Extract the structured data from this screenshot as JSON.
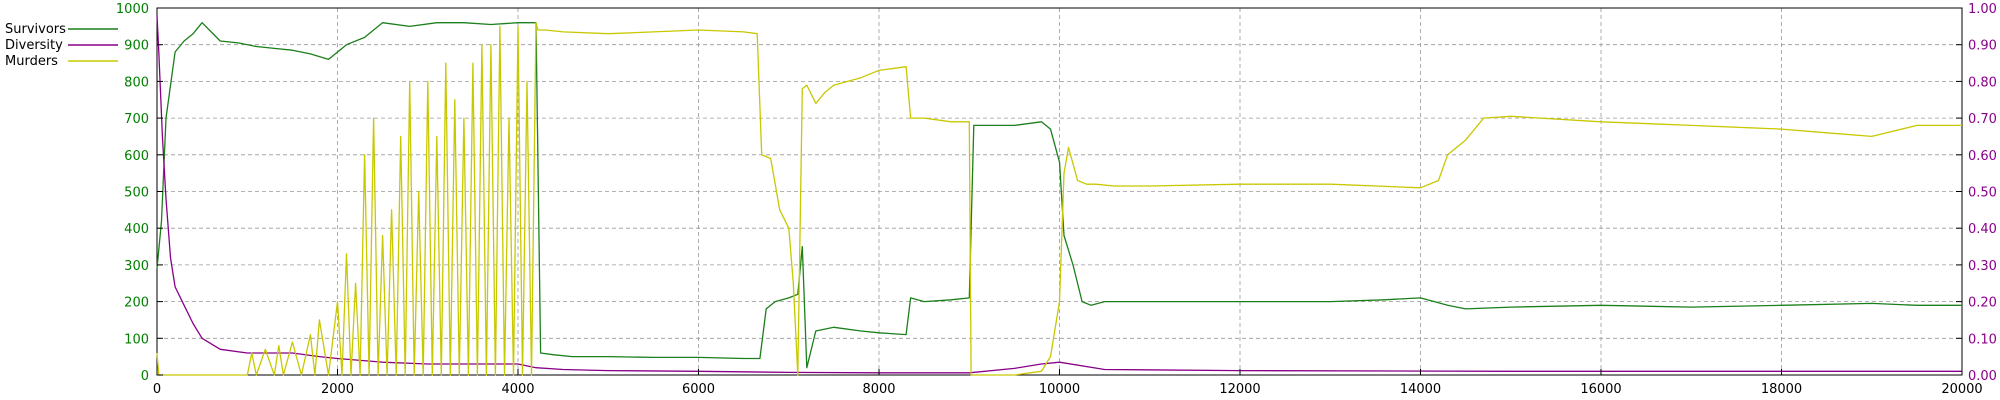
{
  "chart_data": {
    "type": "line",
    "x_ticks": [
      "0",
      "2000",
      "4000",
      "6000",
      "8000",
      "10000",
      "12000",
      "14000",
      "16000",
      "18000",
      "20000"
    ],
    "left_ticks": [
      "0",
      "100",
      "200",
      "300",
      "400",
      "500",
      "600",
      "700",
      "800",
      "900",
      "1000"
    ],
    "right_ticks": [
      "0.00",
      "0.10",
      "0.20",
      "0.30",
      "0.40",
      "0.50",
      "0.60",
      "0.70",
      "0.80",
      "0.90",
      "1.00"
    ],
    "xlim": [
      0,
      20000
    ],
    "ylim_left": [
      0,
      1000
    ],
    "ylim_right": [
      0,
      1.0
    ],
    "grid": true,
    "legend_position": "top-left, outside plot",
    "colors": {
      "left_axis": "#007f00",
      "right_axis": "#8b008b",
      "grid": "#999999"
    },
    "series": [
      {
        "name": "Survivors",
        "axis": "left",
        "color": "#1b7f1b",
        "x": [
          0,
          50,
          100,
          200,
          300,
          400,
          500,
          700,
          900,
          1100,
          1300,
          1500,
          1700,
          1900,
          2100,
          2300,
          2500,
          2800,
          3100,
          3400,
          3700,
          4000,
          4200,
          4250,
          4400,
          4600,
          5000,
          5500,
          6000,
          6500,
          6680,
          6750,
          6850,
          7000,
          7100,
          7150,
          7200,
          7300,
          7500,
          7800,
          8000,
          8300,
          8350,
          8500,
          8800,
          9000,
          9050,
          9100,
          9500,
          9800,
          9900,
          10000,
          10050,
          10150,
          10250,
          10350,
          10500,
          11000,
          12000,
          13000,
          13600,
          14000,
          14300,
          14500,
          15000,
          16000,
          17000,
          18000,
          19000,
          19500,
          20000
        ],
        "y": [
          290,
          420,
          700,
          880,
          910,
          930,
          960,
          910,
          905,
          895,
          890,
          885,
          875,
          860,
          900,
          920,
          960,
          950,
          960,
          960,
          955,
          960,
          960,
          60,
          55,
          50,
          50,
          48,
          48,
          45,
          45,
          180,
          200,
          210,
          220,
          350,
          20,
          120,
          130,
          120,
          115,
          110,
          210,
          200,
          205,
          210,
          680,
          680,
          680,
          690,
          670,
          580,
          380,
          300,
          200,
          190,
          200,
          200,
          200,
          200,
          205,
          210,
          190,
          180,
          185,
          190,
          185,
          190,
          195,
          190,
          190
        ]
      },
      {
        "name": "Diversity",
        "axis": "right",
        "color": "#880088",
        "x": [
          0,
          20,
          60,
          100,
          150,
          200,
          300,
          400,
          500,
          700,
          1000,
          1500,
          1800,
          2000,
          2500,
          3000,
          3500,
          4000,
          4200,
          4500,
          5000,
          6000,
          7000,
          8000,
          9000,
          9500,
          9800,
          10000,
          10500,
          12000,
          15000,
          20000
        ],
        "y": [
          0.98,
          0.88,
          0.65,
          0.48,
          0.32,
          0.24,
          0.19,
          0.14,
          0.1,
          0.07,
          0.06,
          0.06,
          0.05,
          0.045,
          0.035,
          0.03,
          0.03,
          0.03,
          0.02,
          0.015,
          0.012,
          0.01,
          0.007,
          0.006,
          0.006,
          0.018,
          0.03,
          0.035,
          0.015,
          0.012,
          0.01,
          0.01
        ]
      },
      {
        "name": "Murders",
        "axis": "left",
        "color": "#c8c800",
        "x": [
          0,
          20,
          40,
          60,
          100,
          500,
          1000,
          1050,
          1100,
          1200,
          1300,
          1350,
          1400,
          1500,
          1600,
          1700,
          1750,
          1800,
          1900,
          2000,
          2050,
          2100,
          2150,
          2200,
          2250,
          2300,
          2350,
          2400,
          2450,
          2500,
          2550,
          2600,
          2650,
          2700,
          2750,
          2800,
          2850,
          2900,
          2950,
          3000,
          3050,
          3100,
          3150,
          3200,
          3250,
          3300,
          3350,
          3400,
          3450,
          3500,
          3550,
          3600,
          3650,
          3700,
          3750,
          3800,
          3850,
          3900,
          3950,
          4000,
          4050,
          4100,
          4150,
          4200,
          4220,
          4300,
          4500,
          5000,
          5500,
          6000,
          6500,
          6650,
          6700,
          6800,
          6900,
          7000,
          7050,
          7100,
          7150,
          7200,
          7300,
          7400,
          7500,
          7800,
          8000,
          8300,
          8350,
          8500,
          8800,
          9000,
          9020,
          9100,
          9500,
          9800,
          9900,
          10000,
          10050,
          10100,
          10200,
          10300,
          10400,
          10600,
          11000,
          12000,
          13000,
          14000,
          14200,
          14300,
          14500,
          14700,
          15000,
          16000,
          17000,
          18000,
          18500,
          19000,
          19500,
          20000
        ],
        "y": [
          60,
          0,
          0,
          0,
          0,
          0,
          0,
          60,
          0,
          70,
          0,
          80,
          0,
          90,
          0,
          110,
          0,
          150,
          0,
          200,
          0,
          330,
          0,
          250,
          0,
          600,
          0,
          700,
          0,
          380,
          0,
          450,
          0,
          650,
          0,
          800,
          0,
          500,
          0,
          800,
          0,
          650,
          0,
          850,
          0,
          750,
          0,
          700,
          0,
          850,
          0,
          900,
          0,
          900,
          0,
          950,
          0,
          700,
          0,
          950,
          0,
          800,
          0,
          960,
          940,
          940,
          935,
          930,
          935,
          940,
          935,
          930,
          600,
          590,
          450,
          400,
          250,
          0,
          780,
          790,
          740,
          770,
          790,
          810,
          830,
          840,
          700,
          700,
          690,
          690,
          0,
          0,
          0,
          10,
          50,
          200,
          550,
          620,
          530,
          520,
          520,
          515,
          515,
          520,
          520,
          510,
          530,
          600,
          640,
          700,
          705,
          690,
          680,
          670,
          660,
          650,
          680,
          680
        ]
      }
    ]
  }
}
